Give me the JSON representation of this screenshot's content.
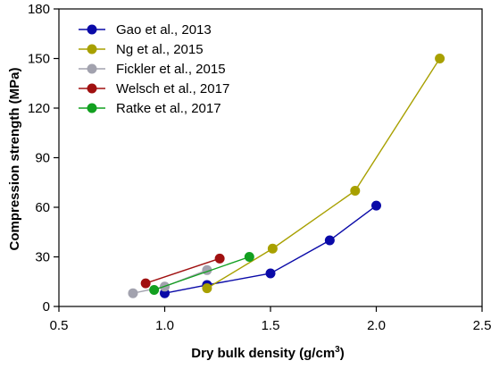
{
  "chart_data": {
    "type": "line",
    "title": "",
    "xlabel": "Dry bulk density (g/cm",
    "xlabel_sup": "3",
    "xlabel_end": ")",
    "ylabel": "Compression strength (MPa)",
    "xlim": [
      0.5,
      2.5
    ],
    "ylim": [
      0,
      180
    ],
    "xticks": [
      0.5,
      1.0,
      1.5,
      2.0,
      2.5
    ],
    "xtick_labels": [
      "0.5",
      "1.0",
      "1.5",
      "2.0",
      "2.5"
    ],
    "yticks": [
      0,
      30,
      60,
      90,
      120,
      150,
      180
    ],
    "ytick_labels": [
      "0",
      "30",
      "60",
      "90",
      "120",
      "150",
      "180"
    ],
    "grid": false,
    "legend_position": "top-left",
    "series": [
      {
        "name": "Gao et al., 2013",
        "color": "#0a0aa8",
        "x": [
          1.0,
          1.2,
          1.5,
          1.78,
          2.0
        ],
        "y": [
          8,
          13,
          20,
          40,
          61
        ]
      },
      {
        "name": "Ng et al., 2015",
        "color": "#a8a000",
        "x": [
          1.2,
          1.51,
          1.9,
          2.3
        ],
        "y": [
          11,
          35,
          70,
          150
        ]
      },
      {
        "name": "Fickler et al., 2015",
        "color": "#a2a2ae",
        "x": [
          0.85,
          1.0,
          1.2
        ],
        "y": [
          8,
          12,
          22
        ]
      },
      {
        "name": "Welsch et al., 2017",
        "color": "#a01010",
        "x": [
          0.91,
          1.26
        ],
        "y": [
          14,
          29
        ]
      },
      {
        "name": "Ratke et al., 2017",
        "color": "#12a020",
        "x": [
          0.95,
          1.4
        ],
        "y": [
          10,
          30
        ]
      }
    ]
  }
}
